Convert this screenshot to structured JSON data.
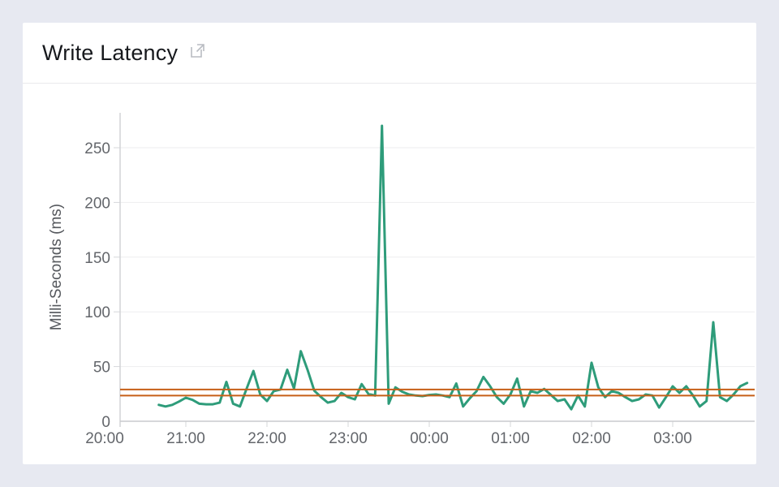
{
  "card": {
    "title": "Write Latency",
    "title_icon": "external-link-icon"
  },
  "chart_data": {
    "type": "line",
    "title": "Write Latency",
    "xlabel": "",
    "ylabel": "Milli-Seconds (ms)",
    "y_ticks": [
      0,
      50,
      100,
      150,
      200,
      250
    ],
    "ylim": [
      0,
      282
    ],
    "x_tick_labels": [
      "20:00",
      "21:00",
      "22:00",
      "23:00",
      "00:00",
      "01:00",
      "02:00",
      "03:00"
    ],
    "grid": "horizontal",
    "legend": "none",
    "series": [
      {
        "name": "write-latency-ms",
        "color": "#2e9c7a",
        "points": [
          [
            "20:40",
            15
          ],
          [
            "20:45",
            13.5
          ],
          [
            "20:50",
            15
          ],
          [
            "20:55",
            18
          ],
          [
            "21:00",
            21.5
          ],
          [
            "21:05",
            19.5
          ],
          [
            "21:10",
            16
          ],
          [
            "21:15",
            15.5
          ],
          [
            "21:20",
            15.5
          ],
          [
            "21:25",
            17
          ],
          [
            "21:30",
            36
          ],
          [
            "21:35",
            16
          ],
          [
            "21:40",
            13.5
          ],
          [
            "21:45",
            30
          ],
          [
            "21:50",
            46
          ],
          [
            "21:55",
            24.5
          ],
          [
            "22:00",
            18.5
          ],
          [
            "22:05",
            27.5
          ],
          [
            "22:10",
            29
          ],
          [
            "22:15",
            47
          ],
          [
            "22:20",
            30
          ],
          [
            "22:25",
            64
          ],
          [
            "22:30",
            47
          ],
          [
            "22:35",
            28
          ],
          [
            "22:40",
            22
          ],
          [
            "22:45",
            17
          ],
          [
            "22:50",
            18.5
          ],
          [
            "22:55",
            26
          ],
          [
            "23:00",
            22
          ],
          [
            "23:05",
            20
          ],
          [
            "23:10",
            34
          ],
          [
            "23:15",
            25
          ],
          [
            "23:20",
            23.5
          ],
          [
            "23:25",
            270
          ],
          [
            "23:30",
            16
          ],
          [
            "23:35",
            31
          ],
          [
            "23:40",
            27
          ],
          [
            "23:45",
            24.5
          ],
          [
            "23:50",
            23.5
          ],
          [
            "23:55",
            23
          ],
          [
            "00:00",
            24
          ],
          [
            "00:05",
            24.5
          ],
          [
            "00:10",
            23.5
          ],
          [
            "00:15",
            22
          ],
          [
            "00:20",
            34.5
          ],
          [
            "00:25",
            13.5
          ],
          [
            "00:30",
            21
          ],
          [
            "00:35",
            27.5
          ],
          [
            "00:40",
            40.5
          ],
          [
            "00:45",
            32
          ],
          [
            "00:50",
            22
          ],
          [
            "00:55",
            16
          ],
          [
            "01:00",
            24.5
          ],
          [
            "01:05",
            39
          ],
          [
            "01:10",
            13.5
          ],
          [
            "01:15",
            27.5
          ],
          [
            "01:20",
            26
          ],
          [
            "01:25",
            29.5
          ],
          [
            "01:30",
            24
          ],
          [
            "01:35",
            18.5
          ],
          [
            "01:40",
            20
          ],
          [
            "01:45",
            11
          ],
          [
            "01:50",
            23.5
          ],
          [
            "01:55",
            13.5
          ],
          [
            "02:00",
            53.5
          ],
          [
            "02:05",
            31
          ],
          [
            "02:10",
            22
          ],
          [
            "02:15",
            27.5
          ],
          [
            "02:20",
            26
          ],
          [
            "02:25",
            22
          ],
          [
            "02:30",
            18.5
          ],
          [
            "02:35",
            20
          ],
          [
            "02:40",
            24.5
          ],
          [
            "02:45",
            23.5
          ],
          [
            "02:50",
            12.5
          ],
          [
            "02:55",
            22
          ],
          [
            "03:00",
            32
          ],
          [
            "03:05",
            26
          ],
          [
            "03:10",
            32
          ],
          [
            "03:15",
            23.5
          ],
          [
            "03:20",
            13.5
          ],
          [
            "03:25",
            18.5
          ],
          [
            "03:30",
            90.5
          ],
          [
            "03:35",
            22
          ],
          [
            "03:40",
            18.5
          ],
          [
            "03:45",
            24.5
          ],
          [
            "03:50",
            32
          ],
          [
            "03:55",
            35
          ]
        ]
      }
    ],
    "reference_lines": [
      {
        "name": "upper-threshold",
        "value": 29,
        "color": "#c65f17"
      },
      {
        "name": "lower-threshold",
        "value": 23.5,
        "color": "#c65f17"
      }
    ]
  }
}
